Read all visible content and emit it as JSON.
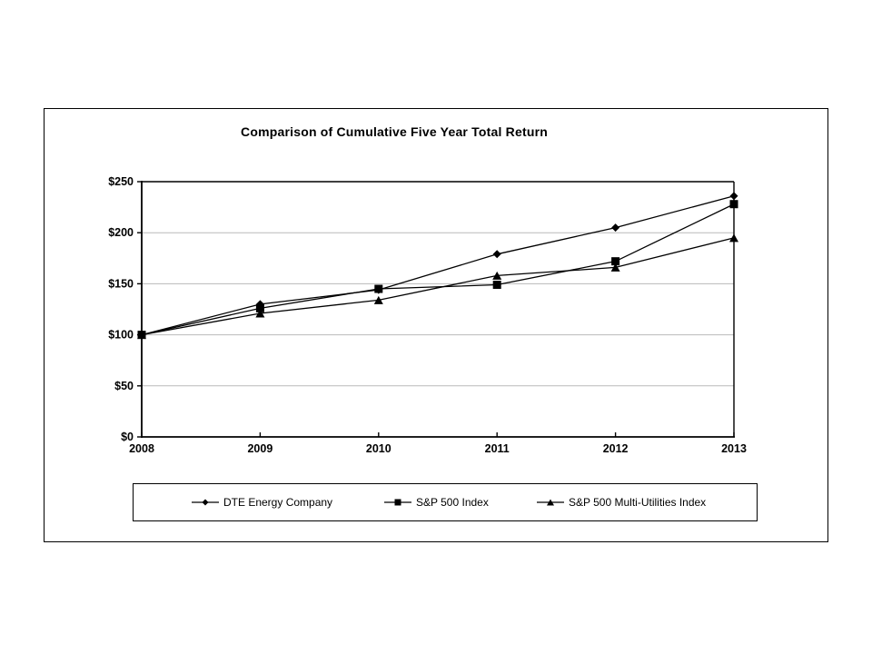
{
  "chart": {
    "colors": {
      "series_line": "#000000",
      "gridline": "#b9b9b9",
      "axis": "#000000",
      "background": "#ffffff"
    }
  },
  "chart_data": {
    "type": "line",
    "title": "Comparison of Cumulative Five Year Total Return",
    "categories": [
      "2008",
      "2009",
      "2010",
      "2011",
      "2012",
      "2013"
    ],
    "series": [
      {
        "name": "DTE Energy Company",
        "marker": "diamond",
        "color": "#000000",
        "values": [
          100,
          130,
          144,
          179,
          205,
          236
        ]
      },
      {
        "name": "S&P 500 Index",
        "marker": "square",
        "color": "#000000",
        "values": [
          100,
          126,
          145,
          149,
          172,
          228
        ]
      },
      {
        "name": "S&P 500 Multi-Utilities Index",
        "marker": "triangle",
        "color": "#000000",
        "values": [
          100,
          121,
          134,
          158,
          166,
          195
        ]
      }
    ],
    "xlabel": "",
    "ylabel": "",
    "ylim": [
      0,
      250
    ],
    "ytick_step": 50,
    "ytick_labels": [
      "$0",
      "$50",
      "$100",
      "$150",
      "$200",
      "$250"
    ],
    "grid": true,
    "legend_position": "bottom"
  }
}
